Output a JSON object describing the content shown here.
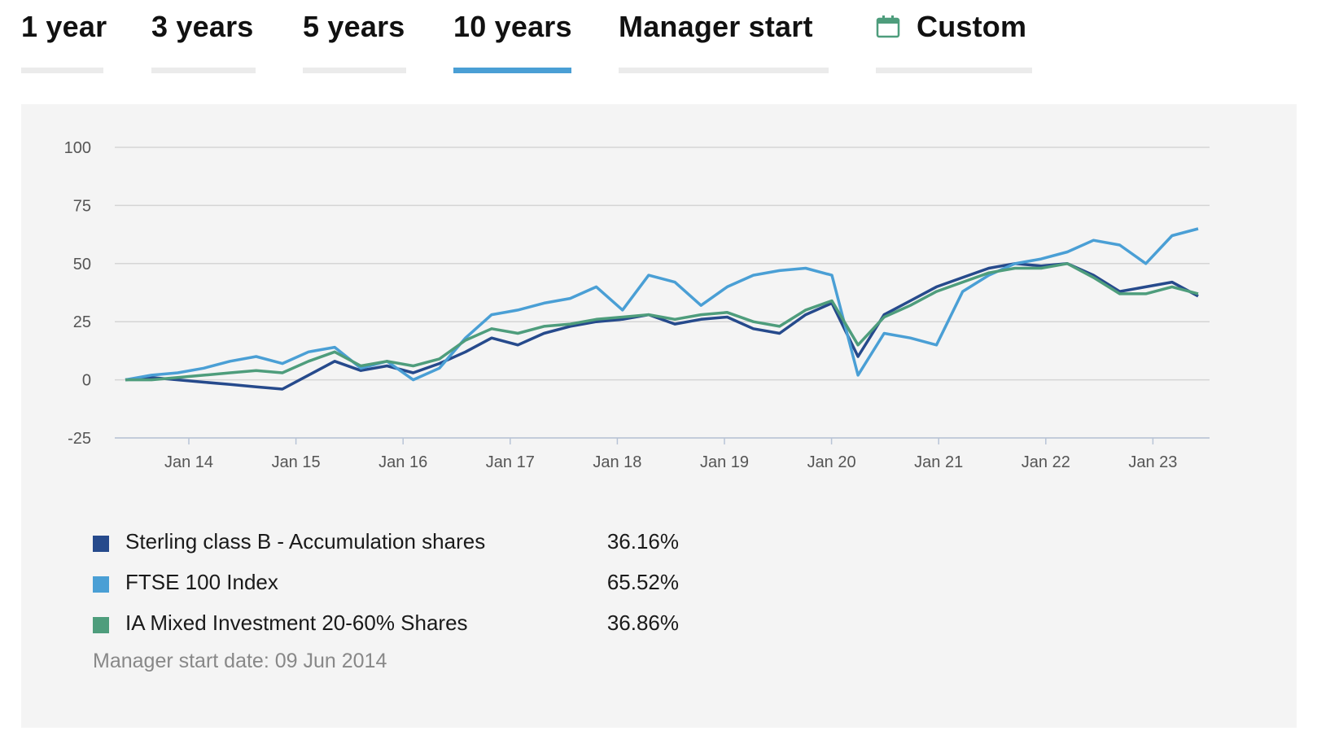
{
  "tabs": [
    {
      "label": "1 year",
      "active": false
    },
    {
      "label": "3 years",
      "active": false
    },
    {
      "label": "5 years",
      "active": false
    },
    {
      "label": "10 years",
      "active": true
    },
    {
      "label": "Manager start",
      "active": false
    },
    {
      "label": "Custom",
      "active": false,
      "icon": "calendar-icon"
    }
  ],
  "colors": {
    "active_tab": "#4a9fd5",
    "inactive_tab": "#ebebeb",
    "panel_bg": "#f4f4f4",
    "calendar_icon": "#4e9d7c"
  },
  "manager_note": "Manager start date: 09 Jun 2014",
  "chart_data": {
    "type": "line",
    "xlabel": "",
    "ylabel": "",
    "ylim": [
      -25,
      100
    ],
    "yticks": [
      "100",
      "75",
      "50",
      "25",
      "0",
      "-25"
    ],
    "xticks": [
      "Jan 14",
      "Jan 15",
      "Jan 16",
      "Jan 17",
      "Jan 18",
      "Jan 19",
      "Jan 20",
      "Jan 21",
      "Jan 22",
      "Jan 23"
    ],
    "grid": true,
    "legend_position": "bottom",
    "x": [
      "Jun 13",
      "Sep 13",
      "Dec 13",
      "Mar 14",
      "Jun 14",
      "Sep 14",
      "Dec 14",
      "Mar 15",
      "Jun 15",
      "Sep 15",
      "Dec 15",
      "Mar 16",
      "Jun 16",
      "Sep 16",
      "Dec 16",
      "Mar 17",
      "Jun 17",
      "Sep 17",
      "Dec 17",
      "Mar 18",
      "Jun 18",
      "Sep 18",
      "Dec 18",
      "Mar 19",
      "Jun 19",
      "Sep 19",
      "Dec 19",
      "Feb 20",
      "Mar 20",
      "Jun 20",
      "Sep 20",
      "Dec 20",
      "Mar 21",
      "Jun 21",
      "Sep 21",
      "Dec 21",
      "Mar 22",
      "Jun 22",
      "Sep 22",
      "Dec 22",
      "Mar 23",
      "Jun 23"
    ],
    "series": [
      {
        "name": "Sterling class B - Accumulation shares",
        "return_label": "36.16%",
        "color": "#264a8c",
        "values": [
          0,
          1,
          0,
          -1,
          -2,
          -3,
          -4,
          2,
          8,
          4,
          6,
          3,
          7,
          12,
          18,
          15,
          20,
          23,
          25,
          26,
          28,
          24,
          26,
          27,
          22,
          20,
          28,
          33,
          10,
          28,
          34,
          40,
          44,
          48,
          50,
          49,
          50,
          45,
          38,
          40,
          42,
          36
        ]
      },
      {
        "name": "FTSE 100 Index",
        "return_label": "65.52%",
        "color": "#4a9fd5",
        "values": [
          0,
          2,
          3,
          5,
          8,
          10,
          7,
          12,
          14,
          5,
          8,
          0,
          5,
          18,
          28,
          30,
          33,
          35,
          40,
          30,
          45,
          42,
          32,
          40,
          45,
          47,
          48,
          45,
          2,
          20,
          18,
          15,
          38,
          45,
          50,
          52,
          55,
          60,
          58,
          50,
          62,
          65
        ]
      },
      {
        "name": "IA Mixed Investment 20-60% Shares",
        "return_label": "36.86%",
        "color": "#4e9d7c",
        "values": [
          0,
          0,
          1,
          2,
          3,
          4,
          3,
          8,
          12,
          6,
          8,
          6,
          9,
          17,
          22,
          20,
          23,
          24,
          26,
          27,
          28,
          26,
          28,
          29,
          25,
          23,
          30,
          34,
          15,
          27,
          32,
          38,
          42,
          46,
          48,
          48,
          50,
          44,
          37,
          37,
          40,
          37
        ]
      }
    ]
  }
}
